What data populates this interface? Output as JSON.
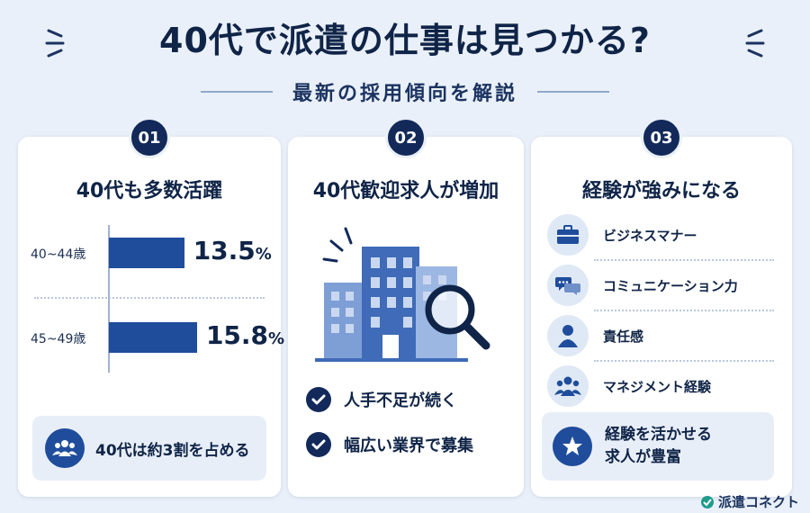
{
  "header": {
    "title": "40代で派遣の仕事は見つかる?",
    "subtitle": "最新の採用傾向を解説"
  },
  "cards": [
    {
      "number": "01",
      "title": "40代も多数活躍",
      "bars": [
        {
          "label": "40~44歳",
          "value": 13.5,
          "value_text": "13.5",
          "unit": "%"
        },
        {
          "label": "45~49歳",
          "value": 15.8,
          "value_text": "15.8",
          "unit": "%"
        }
      ],
      "note": "40代は約3割を占める"
    },
    {
      "number": "02",
      "title": "40代歓迎求人が増加",
      "checks": [
        "人手不足が続く",
        "幅広い業界で募集"
      ]
    },
    {
      "number": "03",
      "title": "経験が強みになる",
      "skills": [
        {
          "label": "ビジネスマナー",
          "icon": "briefcase-icon"
        },
        {
          "label": "コミュニケーション力",
          "icon": "chat-bubbles-icon"
        },
        {
          "label": "責任感",
          "icon": "person-icon"
        },
        {
          "label": "マネジメント経験",
          "icon": "team-icon"
        }
      ],
      "highlight_line1": "経験を活かせる",
      "highlight_line2": "求人が豊富"
    }
  ],
  "logo": {
    "text": "派遣コネクト"
  },
  "colors": {
    "navy": "#12295a",
    "bar": "#1f4d9c",
    "background": "#eaf0f9",
    "panel": "#e8eef8"
  }
}
